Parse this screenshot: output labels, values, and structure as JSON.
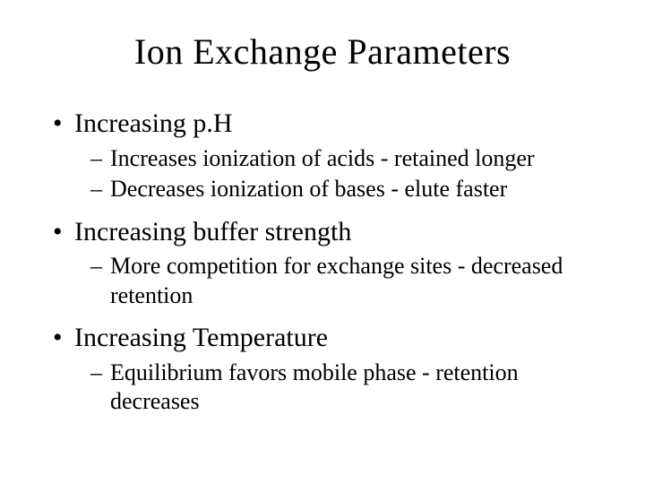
{
  "slide": {
    "title": "Ion Exchange Parameters",
    "background_color": "#ffffff",
    "text_color": "#000000",
    "font_family": "Times New Roman",
    "title_fontsize": 40,
    "level1_fontsize": 30,
    "level2_fontsize": 26,
    "bullets": [
      {
        "text": "Increasing p.H",
        "sub": [
          "Increases ionization of acids - retained longer",
          "Decreases ionization of bases - elute faster"
        ]
      },
      {
        "text": "Increasing buffer strength",
        "sub": [
          "More competition for exchange sites - decreased retention"
        ]
      },
      {
        "text": "Increasing Temperature",
        "sub": [
          "Equilibrium favors mobile phase - retention decreases"
        ]
      }
    ]
  }
}
